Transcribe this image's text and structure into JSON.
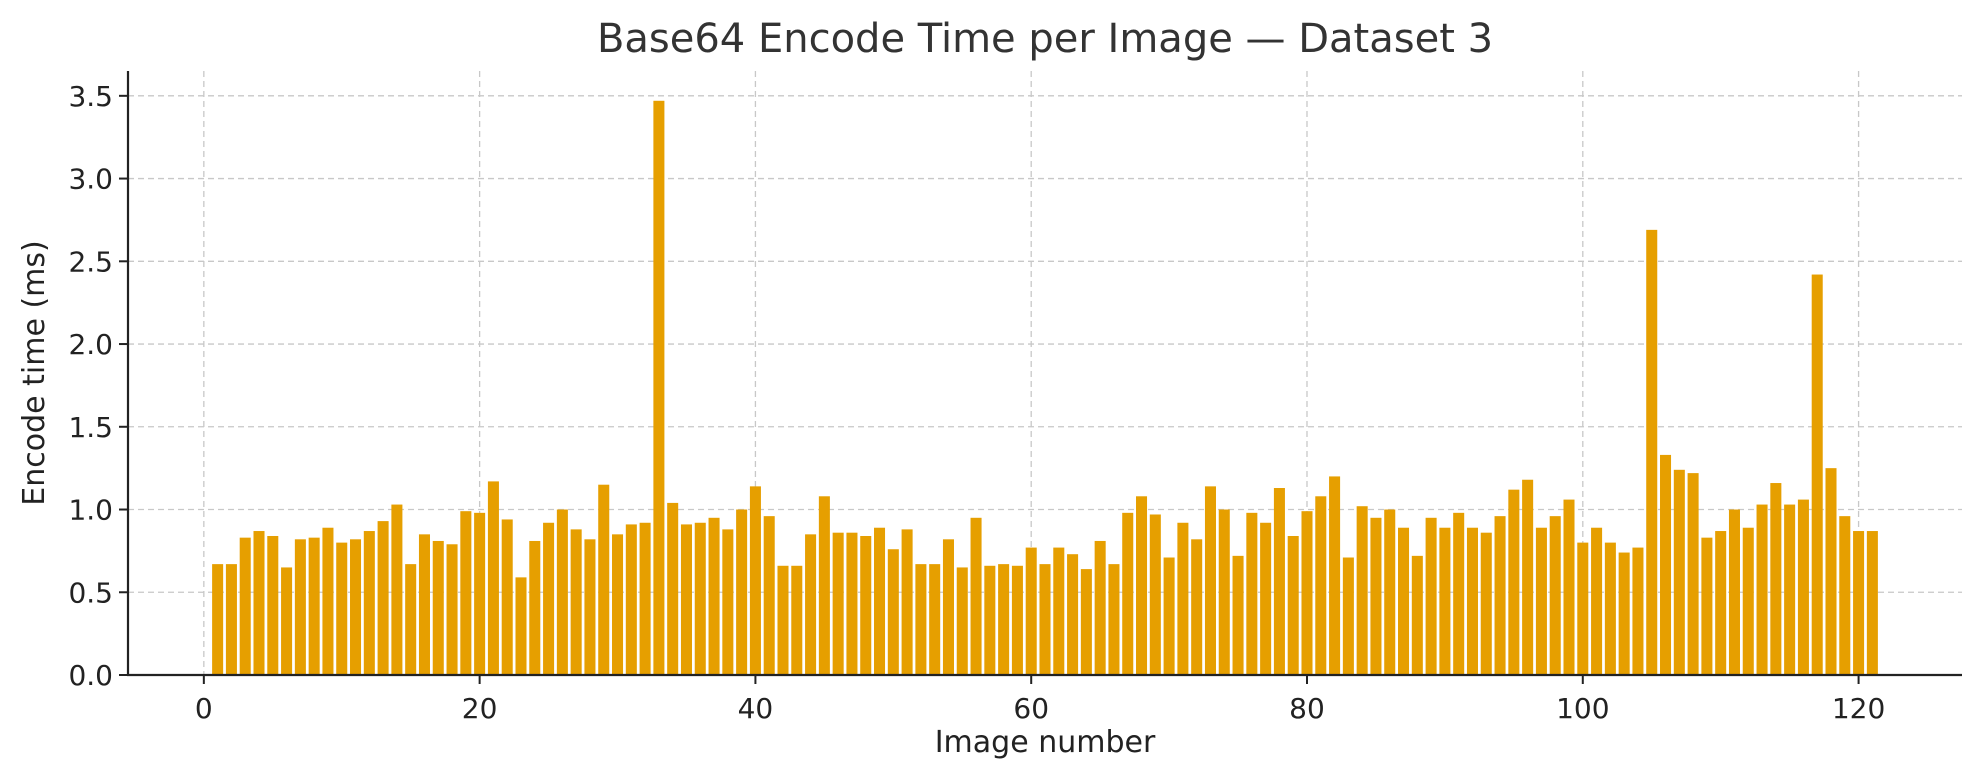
{
  "colors": {
    "bar": "#E69F00",
    "grid": "#c8c8c8",
    "axis": "#222222",
    "title": "#333333"
  },
  "chart_data": {
    "type": "bar",
    "title": "Base64 Encode Time per Image — Dataset 3",
    "xlabel": "Image number",
    "ylabel": "Encode time (ms)",
    "xlim": [
      -5.5,
      127.5
    ],
    "ylim": [
      0,
      3.65
    ],
    "xticks": [
      0,
      20,
      40,
      60,
      80,
      100,
      120
    ],
    "xtick_labels": [
      "0",
      "20",
      "40",
      "60",
      "80",
      "100",
      "120"
    ],
    "yticks": [
      0.0,
      0.5,
      1.0,
      1.5,
      2.0,
      2.5,
      3.0,
      3.5
    ],
    "ytick_labels": [
      "0.0",
      "0.5",
      "1.0",
      "1.5",
      "2.0",
      "2.5",
      "3.0",
      "3.5"
    ],
    "grid": true,
    "legend": "none",
    "x": [
      1,
      2,
      3,
      4,
      5,
      6,
      7,
      8,
      9,
      10,
      11,
      12,
      13,
      14,
      15,
      16,
      17,
      18,
      19,
      20,
      21,
      22,
      23,
      24,
      25,
      26,
      27,
      28,
      29,
      30,
      31,
      32,
      33,
      34,
      35,
      36,
      37,
      38,
      39,
      40,
      41,
      42,
      43,
      44,
      45,
      46,
      47,
      48,
      49,
      50,
      51,
      52,
      53,
      54,
      55,
      56,
      57,
      58,
      59,
      60,
      61,
      62,
      63,
      64,
      65,
      66,
      67,
      68,
      69,
      70,
      71,
      72,
      73,
      74,
      75,
      76,
      77,
      78,
      79,
      80,
      81,
      82,
      83,
      84,
      85,
      86,
      87,
      88,
      89,
      90,
      91,
      92,
      93,
      94,
      95,
      96,
      97,
      98,
      99,
      100,
      101,
      102,
      103,
      104,
      105,
      106,
      107,
      108,
      109,
      110,
      111,
      112,
      113,
      114,
      115,
      116,
      117,
      118,
      119,
      120,
      121
    ],
    "values": [
      0.67,
      0.67,
      0.83,
      0.87,
      0.84,
      0.65,
      0.82,
      0.83,
      0.89,
      0.8,
      0.82,
      0.87,
      0.93,
      1.03,
      0.67,
      0.85,
      0.81,
      0.79,
      0.99,
      0.98,
      1.17,
      0.94,
      0.59,
      0.81,
      0.92,
      1.0,
      0.88,
      0.82,
      1.15,
      0.85,
      0.91,
      0.92,
      3.47,
      1.04,
      0.91,
      0.92,
      0.95,
      0.88,
      1.0,
      1.14,
      0.96,
      0.66,
      0.66,
      0.85,
      1.08,
      0.86,
      0.86,
      0.84,
      0.89,
      0.76,
      0.88,
      0.67,
      0.67,
      0.82,
      0.65,
      0.95,
      0.66,
      0.67,
      0.66,
      0.77,
      0.67,
      0.77,
      0.73,
      0.64,
      0.81,
      0.67,
      0.98,
      1.08,
      0.97,
      0.71,
      0.92,
      0.82,
      1.14,
      1.0,
      0.72,
      0.98,
      0.92,
      1.13,
      0.84,
      0.99,
      1.08,
      1.2,
      0.71,
      1.02,
      0.95,
      1.0,
      0.89,
      0.72,
      0.95,
      0.89,
      0.98,
      0.89,
      0.86,
      0.96,
      1.12,
      1.18,
      0.89,
      0.96,
      1.06,
      0.8,
      0.89,
      0.8,
      0.74,
      0.77,
      2.69,
      1.33,
      1.24,
      1.22,
      0.83,
      0.87,
      1.0,
      0.89,
      1.03,
      1.16,
      1.03,
      1.06,
      2.42,
      1.25,
      0.96,
      0.87,
      0.87
    ]
  }
}
